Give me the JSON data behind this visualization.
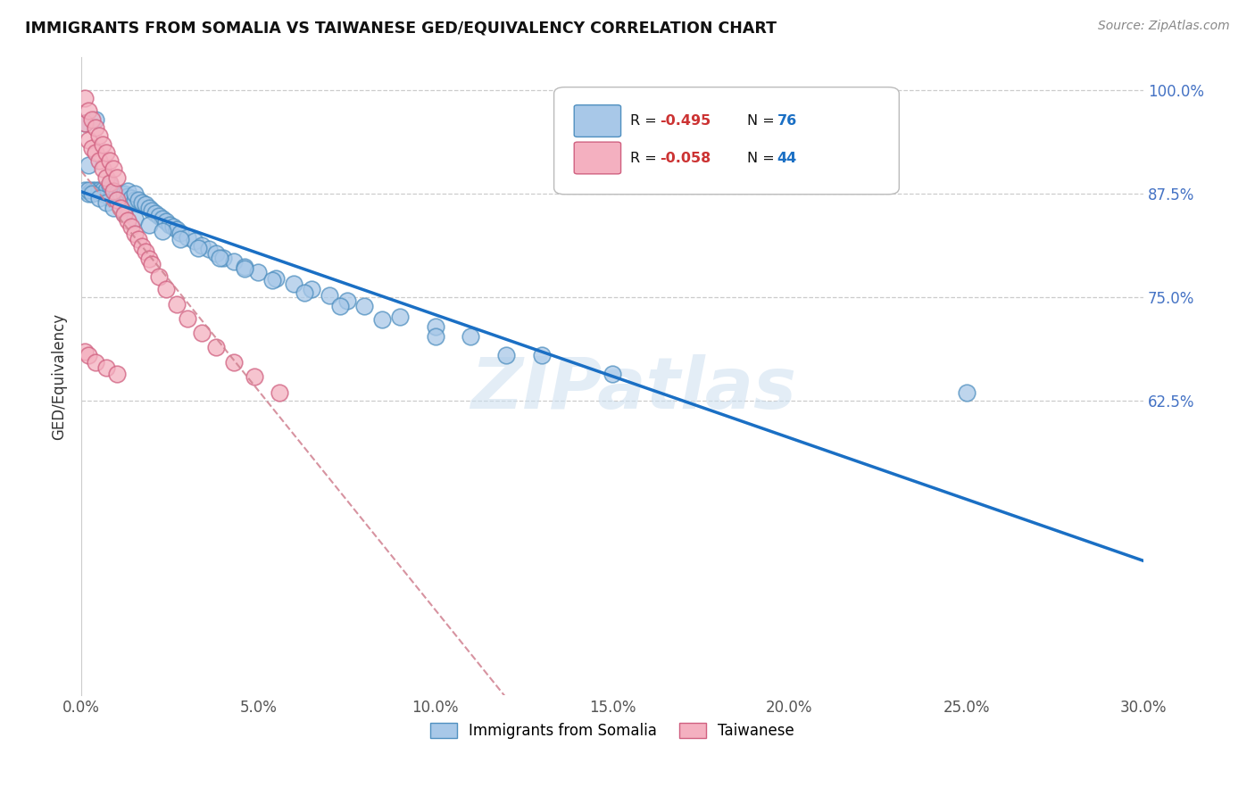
{
  "title": "IMMIGRANTS FROM SOMALIA VS TAIWANESE GED/EQUIVALENCY CORRELATION CHART",
  "source": "Source: ZipAtlas.com",
  "ylabel": "GED/Equivalency",
  "ytick_labels": [
    "100.0%",
    "87.5%",
    "75.0%",
    "62.5%"
  ],
  "ytick_values": [
    1.0,
    0.875,
    0.75,
    0.625
  ],
  "xmin": 0.0,
  "xmax": 0.3,
  "ymin": 0.27,
  "ymax": 1.04,
  "somalia_color": "#a8c8e8",
  "somalia_edge": "#5090c0",
  "taiwanese_color": "#f4b0c0",
  "taiwanese_edge": "#d06080",
  "blue_line_color": "#1a6fc4",
  "pink_line_color": "#d08090",
  "watermark": "ZIPatlas",
  "somalia_x": [
    0.001,
    0.002,
    0.002,
    0.003,
    0.004,
    0.004,
    0.005,
    0.006,
    0.006,
    0.007,
    0.007,
    0.008,
    0.008,
    0.009,
    0.01,
    0.011,
    0.012,
    0.013,
    0.013,
    0.014,
    0.015,
    0.015,
    0.016,
    0.017,
    0.018,
    0.019,
    0.02,
    0.021,
    0.022,
    0.023,
    0.024,
    0.025,
    0.026,
    0.027,
    0.028,
    0.03,
    0.032,
    0.034,
    0.036,
    0.038,
    0.04,
    0.043,
    0.046,
    0.05,
    0.055,
    0.06,
    0.065,
    0.07,
    0.075,
    0.08,
    0.09,
    0.1,
    0.11,
    0.13,
    0.15,
    0.001,
    0.002,
    0.003,
    0.005,
    0.007,
    0.009,
    0.012,
    0.015,
    0.019,
    0.023,
    0.028,
    0.033,
    0.039,
    0.046,
    0.054,
    0.063,
    0.073,
    0.085,
    0.1,
    0.12,
    0.25
  ],
  "somalia_y": [
    0.88,
    0.875,
    0.91,
    0.88,
    0.88,
    0.965,
    0.88,
    0.875,
    0.88,
    0.875,
    0.88,
    0.87,
    0.885,
    0.875,
    0.875,
    0.875,
    0.875,
    0.872,
    0.878,
    0.87,
    0.868,
    0.875,
    0.868,
    0.865,
    0.862,
    0.858,
    0.855,
    0.852,
    0.848,
    0.845,
    0.842,
    0.838,
    0.835,
    0.832,
    0.828,
    0.823,
    0.818,
    0.813,
    0.808,
    0.803,
    0.798,
    0.793,
    0.787,
    0.78,
    0.773,
    0.767,
    0.76,
    0.753,
    0.746,
    0.74,
    0.727,
    0.715,
    0.703,
    0.68,
    0.658,
    0.96,
    0.88,
    0.875,
    0.87,
    0.865,
    0.858,
    0.852,
    0.845,
    0.838,
    0.83,
    0.82,
    0.81,
    0.798,
    0.785,
    0.771,
    0.756,
    0.74,
    0.723,
    0.703,
    0.68,
    0.635
  ],
  "taiwanese_x": [
    0.001,
    0.001,
    0.002,
    0.002,
    0.003,
    0.003,
    0.004,
    0.004,
    0.005,
    0.005,
    0.006,
    0.006,
    0.007,
    0.007,
    0.008,
    0.008,
    0.009,
    0.009,
    0.01,
    0.01,
    0.011,
    0.012,
    0.013,
    0.014,
    0.015,
    0.016,
    0.017,
    0.018,
    0.019,
    0.02,
    0.022,
    0.024,
    0.027,
    0.03,
    0.034,
    0.038,
    0.043,
    0.049,
    0.056,
    0.001,
    0.002,
    0.004,
    0.007,
    0.01
  ],
  "taiwanese_y": [
    0.99,
    0.96,
    0.975,
    0.94,
    0.965,
    0.93,
    0.955,
    0.925,
    0.945,
    0.915,
    0.935,
    0.905,
    0.925,
    0.895,
    0.915,
    0.888,
    0.905,
    0.878,
    0.895,
    0.868,
    0.858,
    0.85,
    0.843,
    0.835,
    0.827,
    0.82,
    0.812,
    0.805,
    0.797,
    0.79,
    0.775,
    0.76,
    0.742,
    0.725,
    0.707,
    0.69,
    0.672,
    0.654,
    0.635,
    0.685,
    0.68,
    0.672,
    0.665,
    0.658
  ]
}
